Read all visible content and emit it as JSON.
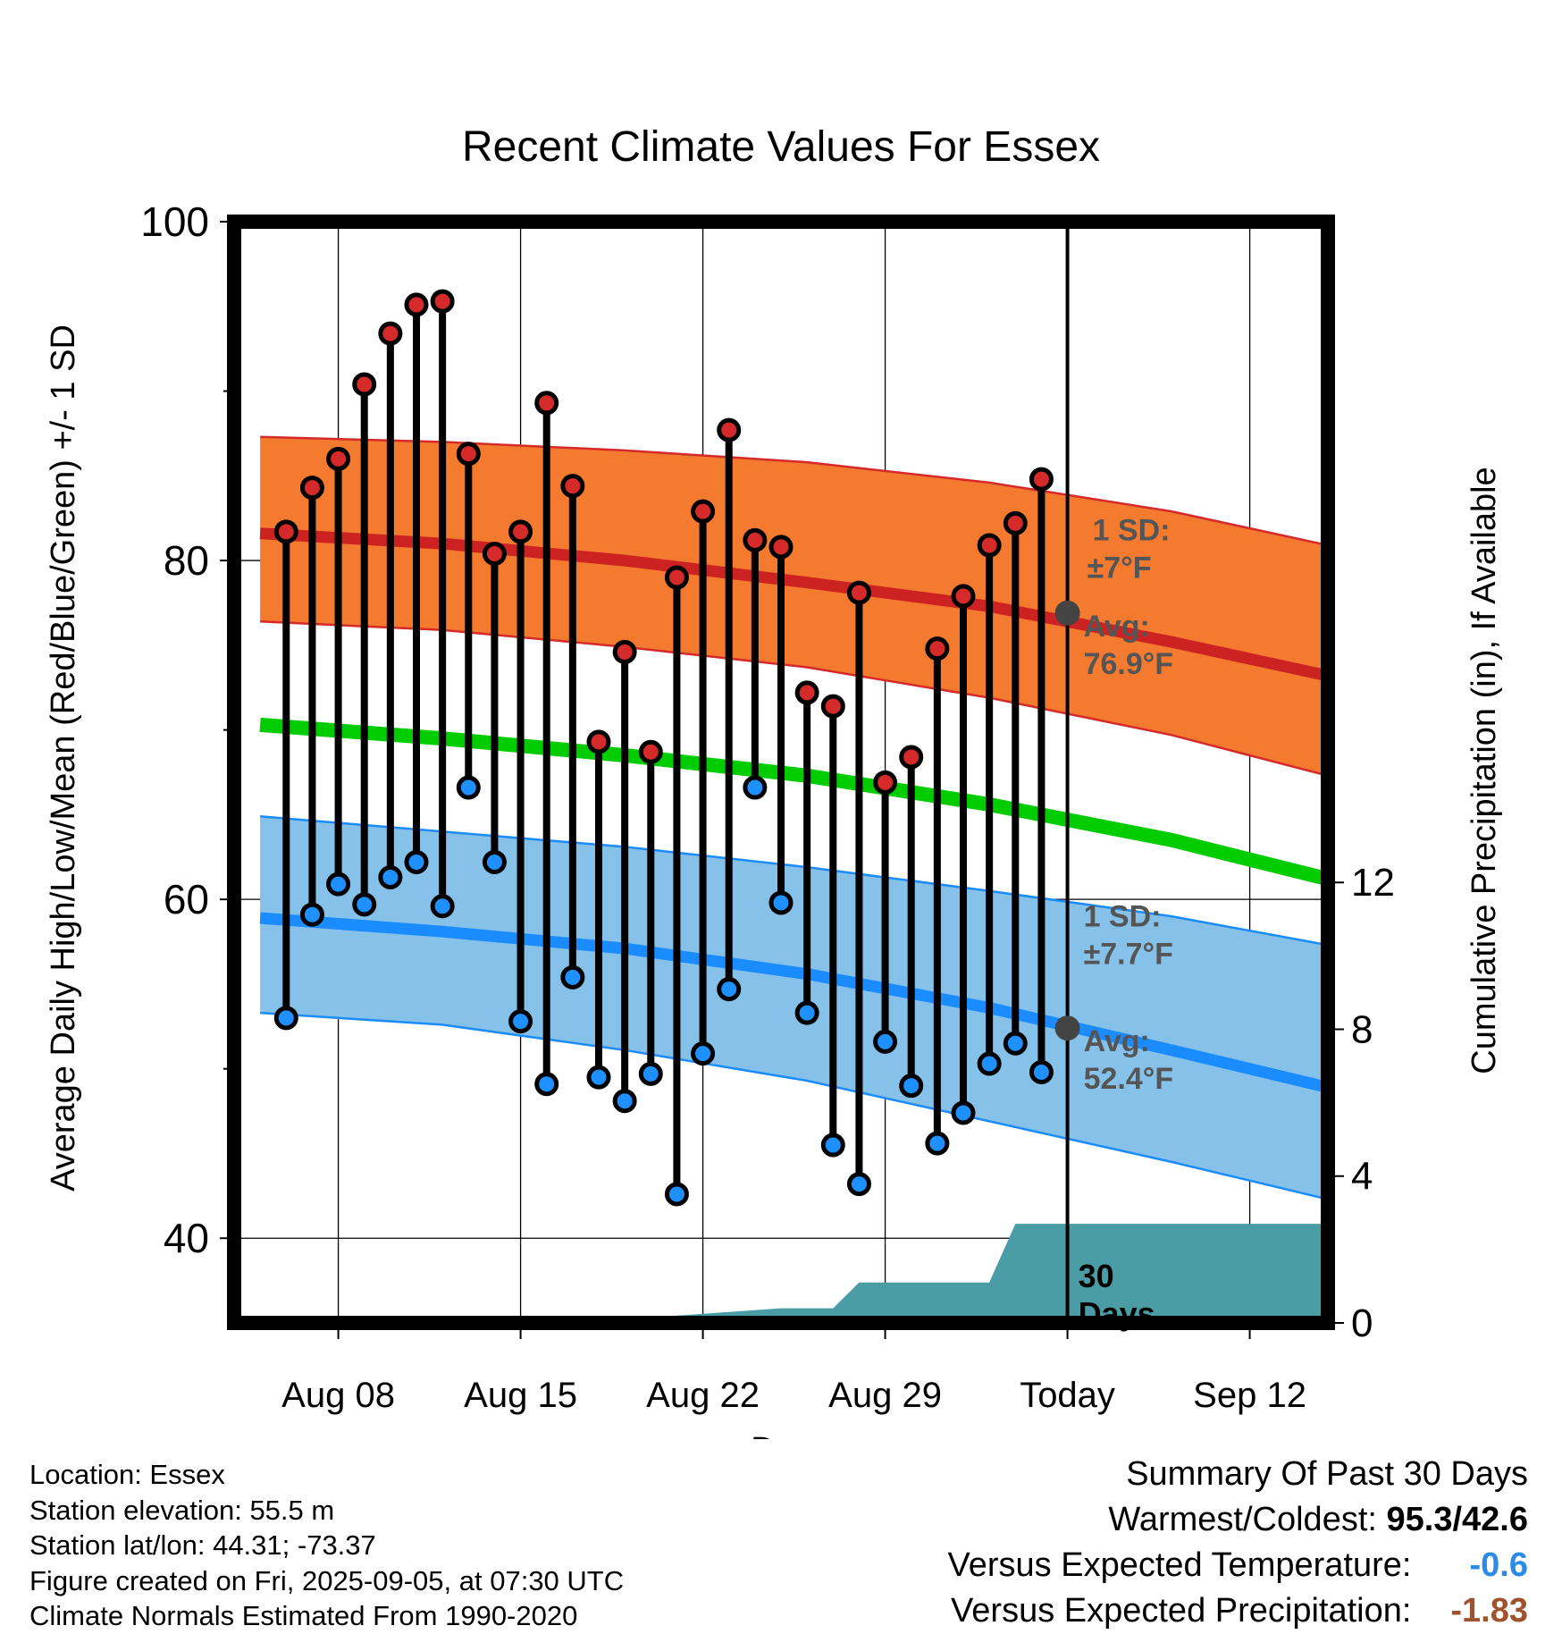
{
  "chart_data": {
    "type": "line",
    "title": "Recent Climate Values For Essex",
    "xlabel": "Day",
    "ylabel": "Average Daily High/Low/Mean (Red/Blue/Green) +/- 1 SD",
    "y2label": "Cumulative Precipitation (in), If Available",
    "xlim": [
      "2025-08-04",
      "2025-09-15"
    ],
    "ylim": [
      35,
      100
    ],
    "y2lim": [
      0,
      30
    ],
    "yticks": [
      40,
      60,
      80,
      100
    ],
    "y2ticks": [
      0,
      4,
      8,
      12
    ],
    "xticks": [
      "Aug 08",
      "Aug 15",
      "Aug 22",
      "Aug 29",
      "Today",
      "Sep 12"
    ],
    "xtick_dates": [
      "2025-08-08",
      "2025-08-15",
      "2025-08-22",
      "2025-08-29",
      "2025-09-05",
      "2025-09-12"
    ],
    "days": [
      "2025-08-06",
      "2025-08-07",
      "2025-08-08",
      "2025-08-09",
      "2025-08-10",
      "2025-08-11",
      "2025-08-12",
      "2025-08-13",
      "2025-08-14",
      "2025-08-15",
      "2025-08-16",
      "2025-08-17",
      "2025-08-18",
      "2025-08-19",
      "2025-08-20",
      "2025-08-21",
      "2025-08-22",
      "2025-08-23",
      "2025-08-24",
      "2025-08-25",
      "2025-08-26",
      "2025-08-27",
      "2025-08-28",
      "2025-08-29",
      "2025-08-30",
      "2025-08-31",
      "2025-09-01",
      "2025-09-02",
      "2025-09-03",
      "2025-09-04"
    ],
    "series": [
      {
        "name": "High",
        "color": "#d42a2a",
        "values": [
          81.7,
          84.3,
          86.0,
          90.4,
          93.4,
          95.1,
          95.3,
          86.3,
          80.4,
          81.7,
          89.3,
          84.4,
          69.3,
          74.6,
          68.7,
          79.0,
          82.9,
          87.7,
          81.2,
          80.8,
          72.2,
          71.4,
          78.1,
          66.9,
          68.4,
          74.8,
          77.9,
          80.9,
          82.2,
          84.8
        ]
      },
      {
        "name": "Low",
        "color": "#1e90ff",
        "values": [
          53.0,
          59.1,
          60.9,
          59.7,
          61.3,
          62.2,
          59.6,
          66.6,
          62.2,
          52.8,
          49.1,
          55.4,
          49.5,
          48.1,
          49.7,
          42.6,
          50.9,
          54.7,
          66.6,
          59.8,
          53.3,
          45.5,
          43.2,
          51.6,
          49.0,
          45.6,
          47.4,
          50.3,
          51.5,
          49.8
        ]
      }
    ],
    "normals": {
      "dates": [
        "2025-08-05",
        "2025-08-12",
        "2025-08-19",
        "2025-08-26",
        "2025-09-02",
        "2025-09-09",
        "2025-09-15"
      ],
      "high_mean": [
        81.6,
        81.0,
        80.0,
        78.7,
        77.3,
        75.2,
        73.2
      ],
      "high_upper": [
        87.3,
        87.0,
        86.5,
        85.8,
        84.6,
        82.9,
        80.9
      ],
      "high_lower": [
        76.4,
        75.9,
        74.9,
        73.7,
        71.9,
        69.7,
        67.3
      ],
      "mean": [
        70.3,
        69.5,
        68.5,
        67.3,
        65.6,
        63.5,
        61.2
      ],
      "low_mean": [
        58.9,
        58.1,
        57.1,
        55.6,
        53.6,
        51.1,
        48.9
      ],
      "low_upper": [
        64.9,
        64.0,
        63.1,
        61.9,
        60.5,
        59.0,
        57.3
      ],
      "low_lower": [
        53.3,
        52.6,
        51.1,
        49.3,
        46.9,
        44.5,
        42.3
      ]
    },
    "precipitation": {
      "dates": [
        "2025-08-20",
        "2025-08-21",
        "2025-08-25",
        "2025-08-27",
        "2025-08-28",
        "2025-08-30",
        "2025-09-02",
        "2025-09-03",
        "2025-09-15"
      ],
      "values": [
        0,
        0.2,
        0.4,
        0.4,
        1.1,
        1.1,
        1.1,
        2.7,
        2.7
      ]
    },
    "annotations": {
      "high_sd": "1 SD:",
      "high_sd_val": "±7°F",
      "high_avg": "Avg:",
      "high_avg_val": "76.9°F",
      "low_sd": "1 SD:",
      "low_sd_val": "±7.7°F",
      "low_avg": "Avg:",
      "low_avg_val": "52.4°F",
      "days_num": "30",
      "days_word": "Days"
    },
    "grid": true,
    "colors": {
      "high_band": "#f47a30",
      "high_mean": "#cc2222",
      "low_band": "#85c1e9",
      "low_mean": "#1a8cff",
      "mean": "#00cc00",
      "precip": "#4a9ca5",
      "annotation": "#555555",
      "today_marker": "#444444"
    }
  },
  "info": {
    "location": "Location: Essex",
    "elevation": "Station elevation: 55.5 m",
    "latlon": "Station lat/lon: 44.31; -73.37",
    "created": "Figure created on Fri, 2025-09-05, at 07:30 UTC",
    "normals": "Climate Normals Estimated From 1990-2020"
  },
  "summary": {
    "title": "Summary Of Past 30 Days",
    "warmest_label": "Warmest/Coldest:",
    "warmest_value": "95.3/42.6",
    "temp_label": "Versus Expected Temperature:",
    "temp_value": "-0.6",
    "temp_color": "#2a8be8",
    "precip_label": "Versus Expected Precipitation:",
    "precip_value": "-1.83",
    "precip_color": "#a0522d"
  }
}
